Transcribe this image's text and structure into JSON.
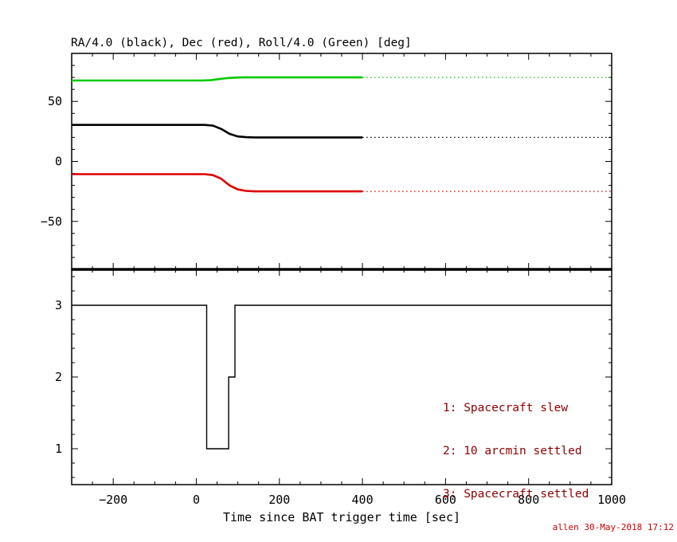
{
  "figure": {
    "title": "RA/4.0 (black), Dec (red), Roll/4.0 (Green) [deg]",
    "xlabel": "Time since BAT trigger time [sec]",
    "footer": "allen 30-May-2018 17:12",
    "colors": {
      "frame": "#000000",
      "ra_line": "#000000",
      "dec_line": "#dd0000",
      "roll_line": "#00c800",
      "legend_text": "#8b0000",
      "footer_text": "#cc0000"
    }
  },
  "chart_data": [
    {
      "type": "line",
      "panel": "attitude",
      "title": "RA/4.0 (black), Dec (red), Roll/4.0 (Green) [deg]",
      "xlim": [
        -300,
        1000
      ],
      "ylim": [
        -90,
        90
      ],
      "xticks": [
        -200,
        0,
        200,
        400,
        600,
        800,
        1000
      ],
      "xtick_labels_visible": false,
      "yticks": [
        -50,
        0,
        50
      ],
      "x_minor_step": 50,
      "y_minor_step": 10,
      "grid": false,
      "series": [
        {
          "name": "roll-div4",
          "legend": "Roll/4.0 (Green)",
          "color": "#00c800",
          "segments": [
            {
              "style": "solid",
              "points": [
                [
                  -300,
                  67.4
                ],
                [
                  15,
                  67.4
                ],
                [
                  35,
                  67.7
                ],
                [
                  55,
                  68.6
                ],
                [
                  75,
                  69.5
                ],
                [
                  95,
                  69.9
                ],
                [
                  115,
                  70
                ],
                [
                  400,
                  70
                ]
              ]
            },
            {
              "style": "dotted",
              "points": [
                [
                  400,
                  70
                ],
                [
                  1000,
                  70
                ]
              ]
            }
          ]
        },
        {
          "name": "ra-div4",
          "legend": "RA/4.0 (black)",
          "color": "#000000",
          "segments": [
            {
              "style": "solid",
              "points": [
                [
                  -300,
                  30.4
                ],
                [
                  20,
                  30.4
                ],
                [
                  40,
                  29.8
                ],
                [
                  60,
                  27
                ],
                [
                  80,
                  23
                ],
                [
                  100,
                  20.8
                ],
                [
                  120,
                  20.2
                ],
                [
                  140,
                  20
                ],
                [
                  400,
                  20
                ]
              ]
            },
            {
              "style": "dotted",
              "points": [
                [
                  400,
                  20
                ],
                [
                  1000,
                  20
                ]
              ]
            }
          ]
        },
        {
          "name": "dec",
          "legend": "Dec (red)",
          "color": "#dd0000",
          "segments": [
            {
              "style": "solid",
              "points": [
                [
                  -300,
                  -10.6
                ],
                [
                  20,
                  -10.6
                ],
                [
                  40,
                  -11.4
                ],
                [
                  60,
                  -14.5
                ],
                [
                  80,
                  -20
                ],
                [
                  100,
                  -23.4
                ],
                [
                  120,
                  -24.6
                ],
                [
                  140,
                  -25
                ],
                [
                  400,
                  -25
                ]
              ]
            },
            {
              "style": "dotted",
              "points": [
                [
                  400,
                  -25
                ],
                [
                  1000,
                  -25
                ]
              ]
            }
          ]
        }
      ]
    },
    {
      "type": "step",
      "panel": "settled-flag",
      "xlim": [
        -300,
        1000
      ],
      "ylim": [
        0.5,
        3.5
      ],
      "xticks": [
        -200,
        0,
        200,
        400,
        600,
        800,
        1000
      ],
      "xtick_labels_visible": true,
      "yticks": [
        1,
        2,
        3
      ],
      "x_minor_step": 50,
      "y_minor_step": 0.2,
      "grid": false,
      "xlabel": "Time since BAT trigger time [sec]",
      "series": [
        {
          "name": "settled-state",
          "color": "#000000",
          "segments": [
            {
              "style": "solid",
              "points": [
                [
                  -300,
                  3
                ],
                [
                  25,
                  3
                ],
                [
                  25,
                  1
                ],
                [
                  78,
                  1
                ],
                [
                  78,
                  2
                ],
                [
                  93,
                  2
                ],
                [
                  93,
                  3
                ],
                [
                  1000,
                  3
                ]
              ]
            }
          ]
        }
      ],
      "annotations": [
        "1: Spacecraft slew",
        "2: 10 arcmin settled",
        "3: Spacecraft settled"
      ],
      "annotations_position": "right-center"
    }
  ]
}
